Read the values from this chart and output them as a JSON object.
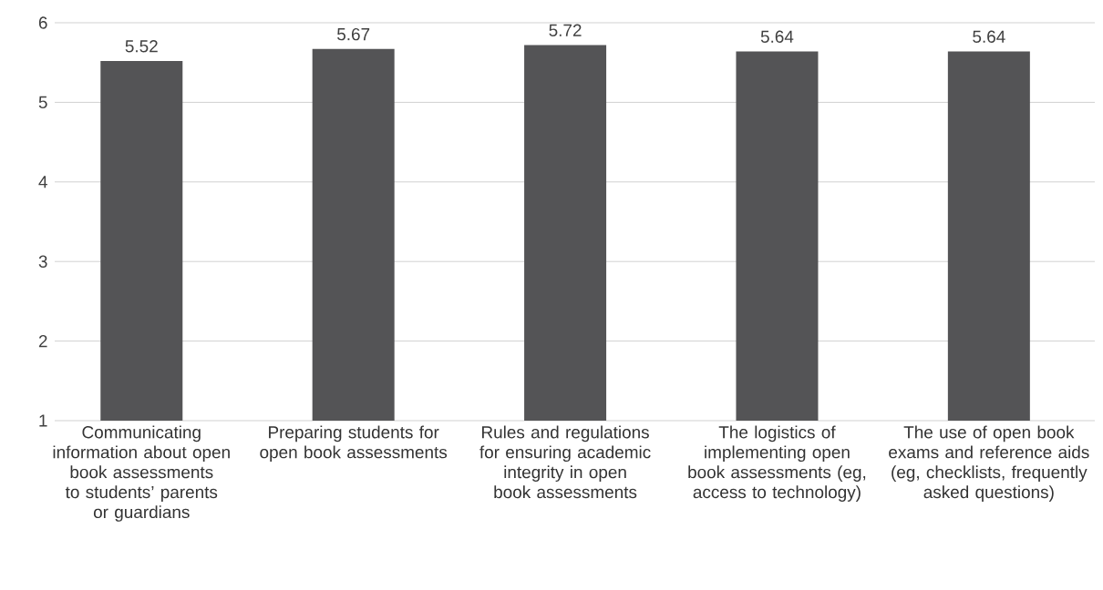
{
  "chart_data": {
    "type": "bar",
    "categories": [
      "Communicating information about open book assessments to students’ parents or guardians",
      "Preparing students for open book assessments",
      "Rules and regulations for ensuring academic integrity in open book assessments",
      "The logistics of implementing open book assessments (eg, access to technology)",
      "The use of open book exams and reference aids (eg, checklists, frequently asked questions)"
    ],
    "values": [
      5.52,
      5.67,
      5.72,
      5.64,
      5.64
    ],
    "color": "#545456",
    "ylim": [
      1,
      6
    ],
    "yticks": [
      1,
      2,
      3,
      4,
      5,
      6
    ],
    "grid": "y",
    "data_labels": true
  }
}
